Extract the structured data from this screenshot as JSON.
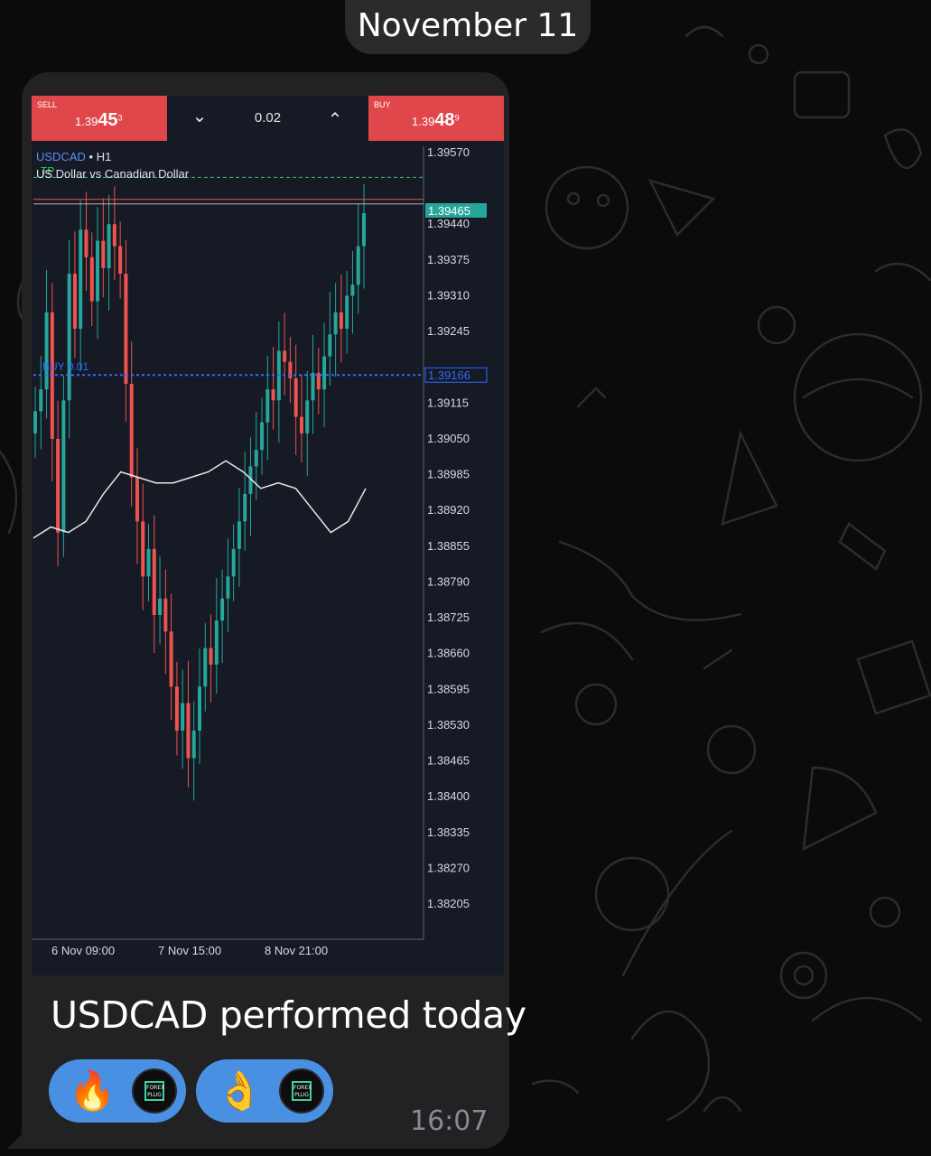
{
  "date_separator": "November 11",
  "trade_panel": {
    "sell": {
      "label": "SELL",
      "price_prefix": "1.39",
      "price_big": "45",
      "price_sup": "3"
    },
    "buy": {
      "label": "BUY",
      "price_prefix": "1.39",
      "price_big": "48",
      "price_sup": "9"
    },
    "lot_size": "0.02"
  },
  "chart_header": {
    "symbol": "USDCAD",
    "separator": " • ",
    "timeframe": "H1",
    "description": "US Dollar vs Canadian Dollar"
  },
  "colors": {
    "bull": "#26a69a",
    "bear": "#ef5350",
    "accent_blue": "#2f6bff",
    "tp_green": "#35c46b",
    "price_tag": "#26a69a",
    "buy_sell": "#e0474a",
    "reaction_blue": "#4a90e2"
  },
  "chart_data": {
    "type": "candlestick",
    "symbol": "USDCAD",
    "timeframe": "H1",
    "y_ticks": [
      "1.39570",
      "1.39440",
      "1.39375",
      "1.39310",
      "1.39245",
      "1.39115",
      "1.39050",
      "1.38985",
      "1.38920",
      "1.38855",
      "1.38790",
      "1.38725",
      "1.38660",
      "1.38595",
      "1.38530",
      "1.38465",
      "1.38400",
      "1.38335",
      "1.38270",
      "1.38205"
    ],
    "ylim": [
      1.3815,
      1.3962
    ],
    "x_ticks": [
      "6 Nov 09:00",
      "7 Nov 15:00",
      "8 Nov 21:00"
    ],
    "current_price_tag": "1.39465",
    "entry_line": {
      "label": "BUY 0.01",
      "price_tag": "1.39166",
      "price": 1.39166
    },
    "tp_line": {
      "label": "TP",
      "price": 1.39525
    },
    "high_line_price": 1.39485,
    "close_path": [
      1.391,
      1.3914,
      1.3928,
      1.3905,
      1.3888,
      1.3912,
      1.3935,
      1.3925,
      1.3943,
      1.3938,
      1.393,
      1.3941,
      1.3936,
      1.3944,
      1.394,
      1.3935,
      1.3915,
      1.3898,
      1.389,
      1.388,
      1.3885,
      1.3873,
      1.3876,
      1.387,
      1.386,
      1.3852,
      1.3857,
      1.3847,
      1.3852,
      1.386,
      1.3867,
      1.3864,
      1.3872,
      1.3876,
      1.388,
      1.3885,
      1.389,
      1.3895,
      1.39,
      1.3903,
      1.3908,
      1.3914,
      1.3912,
      1.3921,
      1.3919,
      1.3916,
      1.3909,
      1.3906,
      1.3912,
      1.3917,
      1.3914,
      1.392,
      1.3924,
      1.3928,
      1.3925,
      1.3931,
      1.3933,
      1.394,
      1.3946
    ],
    "ma_path": [
      1.3887,
      1.3889,
      1.3888,
      1.389,
      1.3895,
      1.3899,
      1.3898,
      1.3897,
      1.3897,
      1.3898,
      1.3899,
      1.3901,
      1.3899,
      1.3896,
      1.3897,
      1.3896,
      1.3892,
      1.3888,
      1.389,
      1.3896
    ]
  },
  "message": {
    "text": "USDCAD performed today",
    "time": "16:07",
    "reactions": [
      {
        "emoji": "🔥",
        "badge": "FOREX PLUG"
      },
      {
        "emoji": "👌",
        "badge": "FOREX PLUG"
      }
    ]
  }
}
